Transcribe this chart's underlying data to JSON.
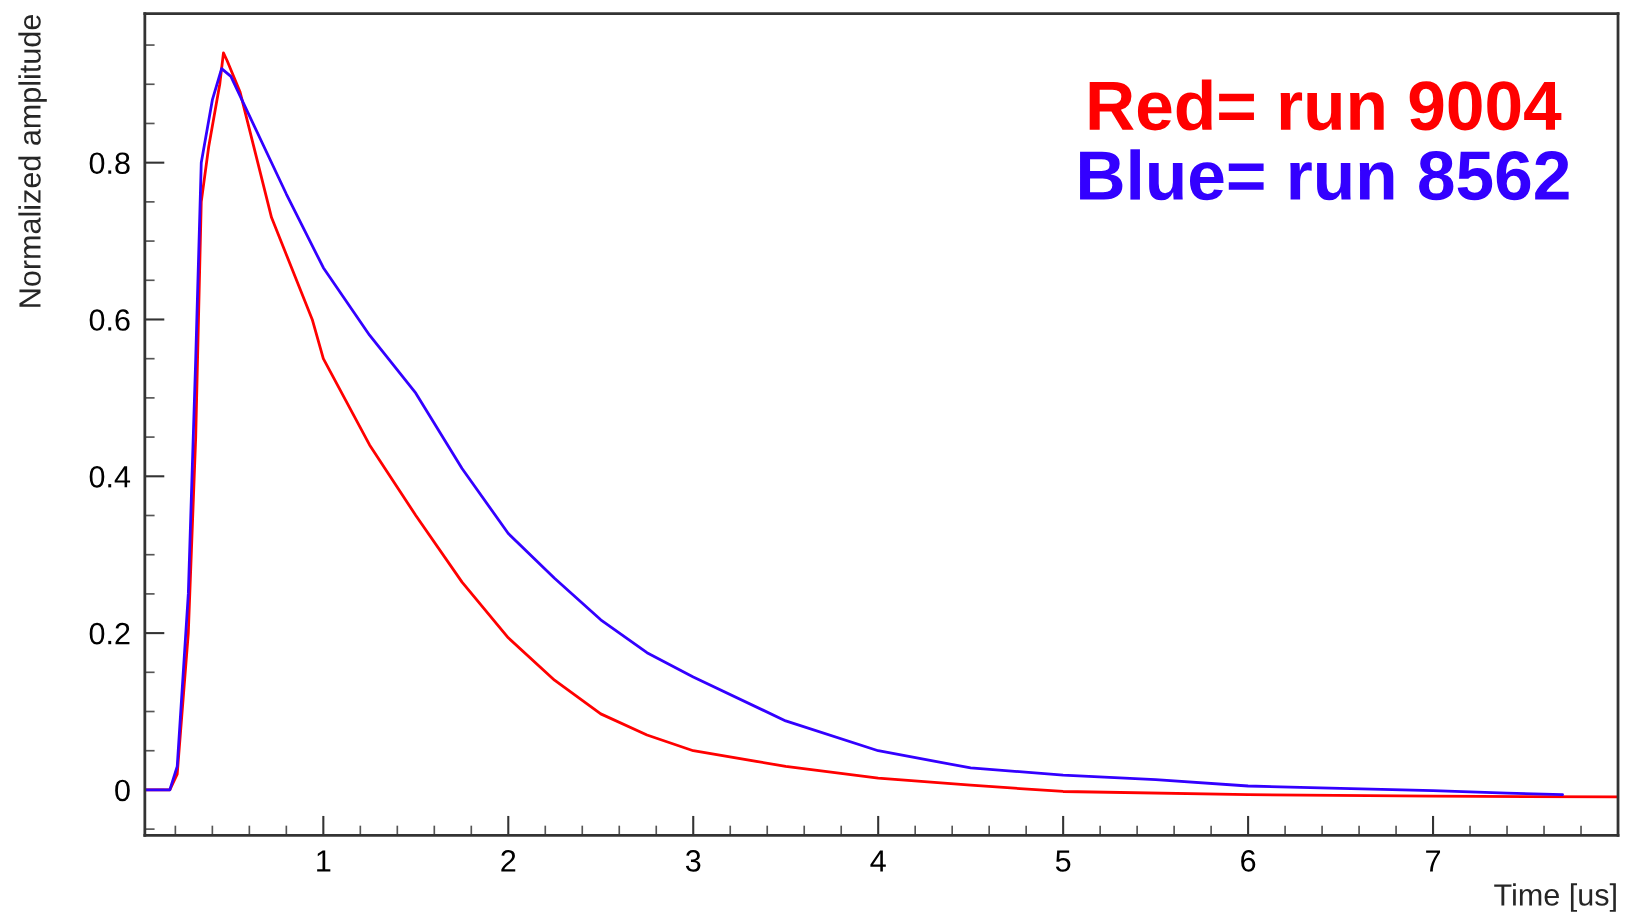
{
  "chart_data": {
    "type": "line",
    "xlabel": "Time [us]",
    "ylabel": "Normalized amplitude",
    "xlim": [
      0.035,
      8.0
    ],
    "ylim": [
      -0.058,
      0.99
    ],
    "xticks": [
      1,
      2,
      3,
      4,
      5,
      6,
      7
    ],
    "yticks": [
      0,
      0.2,
      0.4,
      0.6,
      0.8
    ],
    "grid": false,
    "legend": "top right",
    "marker": "none",
    "line_style": "solid",
    "series": [
      {
        "name": "Red= run 9004",
        "color": "#ff0000",
        "x": [
          0.035,
          0.17,
          0.21,
          0.27,
          0.31,
          0.34,
          0.38,
          0.44,
          0.46,
          0.48,
          0.55,
          0.72,
          0.94,
          1.0,
          1.25,
          1.5,
          1.75,
          2.0,
          2.25,
          2.5,
          2.75,
          3.0,
          3.5,
          4.0,
          4.5,
          5.0,
          6.0,
          7.0,
          8.0
        ],
        "values": [
          0.0,
          0.0,
          0.02,
          0.2,
          0.45,
          0.75,
          0.82,
          0.9,
          0.94,
          0.93,
          0.89,
          0.73,
          0.6,
          0.55,
          0.44,
          0.35,
          0.265,
          0.194,
          0.14,
          0.097,
          0.07,
          0.05,
          0.03,
          0.015,
          0.006,
          -0.002,
          -0.006,
          -0.008,
          -0.009
        ]
      },
      {
        "name": "Blue= run 8562",
        "color": "#3300ff",
        "x": [
          0.035,
          0.17,
          0.21,
          0.27,
          0.31,
          0.34,
          0.4,
          0.45,
          0.5,
          0.6,
          0.8,
          1.0,
          1.25,
          1.5,
          1.75,
          2.0,
          2.25,
          2.5,
          2.75,
          3.0,
          3.5,
          4.0,
          4.5,
          5.0,
          5.5,
          6.0,
          6.5,
          7.0,
          7.4,
          7.7
        ],
        "values": [
          0.0,
          0.0,
          0.03,
          0.25,
          0.55,
          0.8,
          0.88,
          0.92,
          0.91,
          0.86,
          0.76,
          0.666,
          0.58,
          0.506,
          0.41,
          0.327,
          0.27,
          0.217,
          0.175,
          0.144,
          0.088,
          0.05,
          0.028,
          0.019,
          0.013,
          0.005,
          0.002,
          -0.001,
          -0.004,
          -0.006
        ]
      }
    ]
  }
}
